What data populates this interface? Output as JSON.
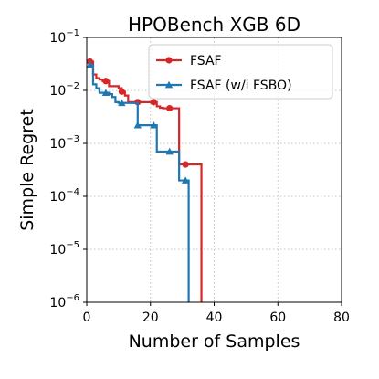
{
  "chart_data": {
    "type": "line",
    "title": "HPOBench XGB 6D",
    "xlabel": "Number of Samples",
    "ylabel": "Simple Regret",
    "xlim": [
      0,
      80
    ],
    "ylim": [
      1e-06,
      0.1
    ],
    "yscale": "log",
    "xticks": [
      0,
      20,
      40,
      60,
      80
    ],
    "yticks": [
      {
        "base": "10",
        "exp": "−6",
        "value": 1e-06
      },
      {
        "base": "10",
        "exp": "−5",
        "value": 1e-05
      },
      {
        "base": "10",
        "exp": "−4",
        "value": 0.0001
      },
      {
        "base": "10",
        "exp": "−3",
        "value": 0.001
      },
      {
        "base": "10",
        "exp": "−2",
        "value": 0.01
      },
      {
        "base": "10",
        "exp": "−1",
        "value": 0.1
      }
    ],
    "grid": true,
    "legend_position": "top-right",
    "series": [
      {
        "name": "FSAF",
        "color": "#d62728",
        "marker": "circle",
        "x": [
          1,
          2,
          3,
          4,
          5,
          6,
          7,
          8,
          9,
          10,
          11,
          12,
          13,
          14,
          15,
          16,
          17,
          18,
          19,
          20,
          21,
          22,
          23,
          24,
          25,
          26,
          27,
          28,
          29,
          30,
          31,
          32,
          33,
          34,
          35,
          36
        ],
        "y": [
          0.035,
          0.02,
          0.017,
          0.016,
          0.015,
          0.015,
          0.012,
          0.012,
          0.012,
          0.011,
          0.0095,
          0.008,
          0.006,
          0.006,
          0.006,
          0.006,
          0.006,
          0.006,
          0.006,
          0.006,
          0.006,
          0.005,
          0.0047,
          0.0046,
          0.0046,
          0.0046,
          0.0046,
          0.0046,
          0.0004,
          0.0004,
          0.0004,
          0.0004,
          0.0004,
          0.0004,
          0.0004,
          1e-06
        ],
        "marker_every": 5
      },
      {
        "name": "FSAF (w/i FSBO)",
        "color": "#1f77b4",
        "marker": "triangle",
        "x": [
          1,
          2,
          3,
          4,
          5,
          6,
          7,
          8,
          9,
          10,
          11,
          12,
          13,
          14,
          15,
          16,
          17,
          18,
          19,
          20,
          21,
          22,
          23,
          24,
          25,
          26,
          27,
          28,
          29,
          30,
          31,
          32
        ],
        "y": [
          0.03,
          0.013,
          0.011,
          0.009,
          0.009,
          0.009,
          0.0085,
          0.0075,
          0.006,
          0.0058,
          0.0058,
          0.0058,
          0.0058,
          0.0058,
          0.0058,
          0.0022,
          0.0022,
          0.0022,
          0.0022,
          0.0022,
          0.0022,
          0.0007,
          0.0007,
          0.0007,
          0.0007,
          0.0007,
          0.0007,
          0.0007,
          0.0002,
          0.0002,
          0.0002,
          1e-06
        ],
        "marker_every": 5
      }
    ]
  }
}
